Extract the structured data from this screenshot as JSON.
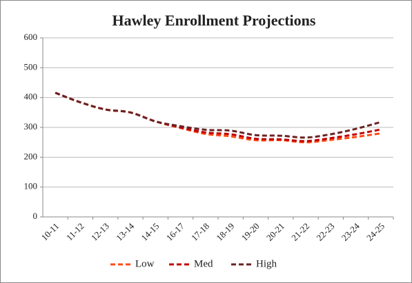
{
  "chart_data": {
    "type": "line",
    "title": "Hawley Enrollment Projections",
    "categories": [
      "10-11",
      "11-12",
      "12-13",
      "13-14",
      "14-15",
      "16-17",
      "17-18",
      "18-19",
      "19-20",
      "20-21",
      "21-22",
      "22-23",
      "23-24",
      "24-25"
    ],
    "series": [
      {
        "name": "Low",
        "color": "#ff4a14",
        "values": [
          416,
          384,
          360,
          350,
          320,
          298,
          278,
          270,
          257,
          257,
          250,
          258,
          268,
          280
        ]
      },
      {
        "name": "Med",
        "color": "#c00000",
        "values": [
          416,
          384,
          360,
          350,
          320,
          300,
          283,
          277,
          262,
          260,
          254,
          264,
          277,
          293
        ]
      },
      {
        "name": "High",
        "color": "#6b2222",
        "values": [
          416,
          384,
          360,
          350,
          320,
          304,
          292,
          289,
          274,
          272,
          266,
          277,
          295,
          318
        ]
      }
    ],
    "ylim": [
      0,
      600
    ],
    "yticks": [
      0,
      100,
      200,
      300,
      400,
      500,
      600
    ],
    "grid": true,
    "legend": "bottom",
    "line_style": "dashed"
  }
}
